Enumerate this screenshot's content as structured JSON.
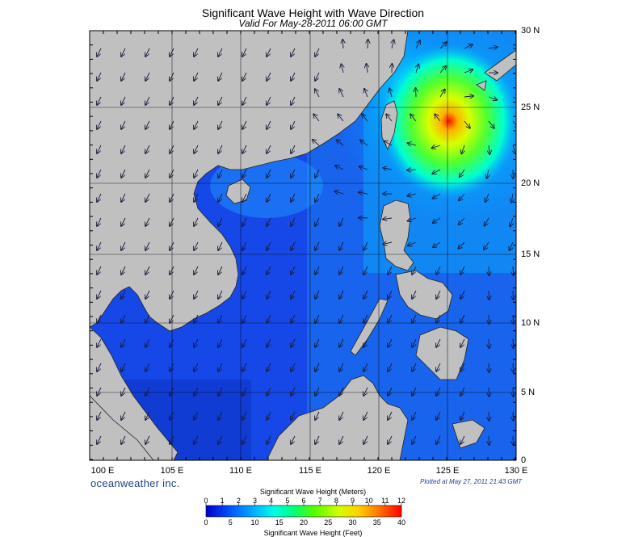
{
  "title": "Significant Wave Height with Wave Direction",
  "subtitle": "Valid For May-28-2011 06:00 GMT",
  "brand": "oceanweather inc.",
  "plotted": "Plotted at May 27, 2011 21:43 GMT",
  "map": {
    "lon_labels": [
      "100 E",
      "105 E",
      "110 E",
      "115 E",
      "120 E",
      "125 E",
      "130 E"
    ],
    "lat_labels": [
      "30 N",
      "25 N",
      "20 N",
      "15 N",
      "10 N",
      "5 N",
      "0"
    ],
    "colors": {
      "land": "#c0c0c0",
      "water_low": "#1050e0",
      "storm_peak": "#ff2000"
    }
  },
  "colorbar": {
    "title_meters": "Significant Wave Height (Meters)",
    "title_feet": "Significant Wave Height (Feet)",
    "meter_ticks": [
      "0",
      "1",
      "2",
      "3",
      "4",
      "5",
      "6",
      "7",
      "8",
      "9",
      "10",
      "11",
      "12"
    ],
    "feet_ticks": [
      "0",
      "5",
      "10",
      "15",
      "20",
      "25",
      "30",
      "35",
      "40"
    ]
  }
}
